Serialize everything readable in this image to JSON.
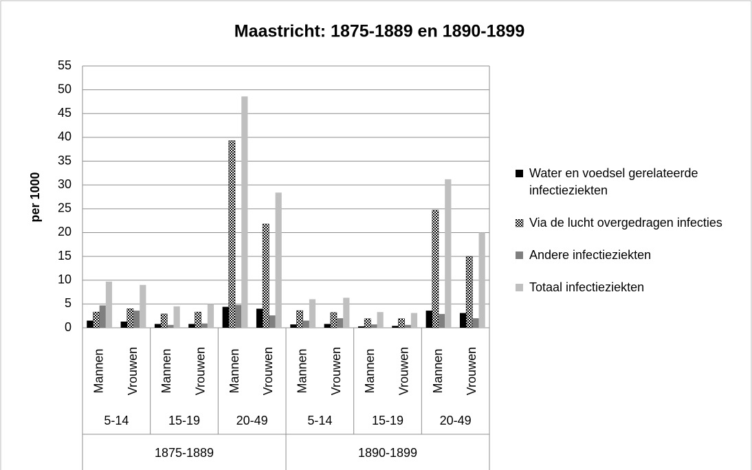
{
  "chart_data": {
    "type": "bar",
    "title": "Maastricht: 1875-1889 en 1890-1899",
    "y_label": "per 1000",
    "categories": [
      "Mannen",
      "Vrouwen",
      "Mannen",
      "Vrouwen",
      "Mannen",
      "Vrouwen",
      "Mannen",
      "Vrouwen",
      "Mannen",
      "Vrouwen",
      "Mannen",
      "Vrouwen"
    ],
    "groups": [
      [
        "5-14",
        "15-19",
        "20-49",
        "5-14",
        "15-19",
        "20-49"
      ],
      [
        "1875-1889",
        "1890-1899"
      ]
    ],
    "series": [
      {
        "name": "Water en voedsel gerelateerde infectieziekten",
        "color": "#000000",
        "values": [
          1.5,
          1.3,
          0.8,
          0.8,
          4.4,
          4.0,
          0.7,
          0.8,
          0.3,
          0.4,
          3.6,
          3.1
        ]
      },
      {
        "name": "Via de lucht overgedragen infecties",
        "color": "#000000",
        "pattern": "checker",
        "values": [
          3.3,
          4.0,
          2.9,
          3.3,
          39.3,
          21.8,
          3.6,
          3.2,
          1.9,
          1.9,
          24.7,
          15.0
        ]
      },
      {
        "name": "Andere infectieziekten",
        "color": "#7f7f7f",
        "values": [
          4.7,
          3.6,
          0.6,
          0.9,
          4.8,
          2.6,
          1.5,
          2.0,
          0.7,
          0.6,
          2.9,
          2.0
        ]
      },
      {
        "name": "Totaal infectieziekten",
        "color": "#bfbfbf",
        "values": [
          9.7,
          9.0,
          4.5,
          5.0,
          48.6,
          28.4,
          6.0,
          6.3,
          3.3,
          3.1,
          31.2,
          20.0
        ]
      }
    ],
    "ylim": [
      0,
      55
    ],
    "yticks": [
      0,
      5,
      10,
      15,
      20,
      25,
      30,
      35,
      40,
      45,
      50,
      55
    ],
    "grid": true,
    "legend": "right"
  }
}
